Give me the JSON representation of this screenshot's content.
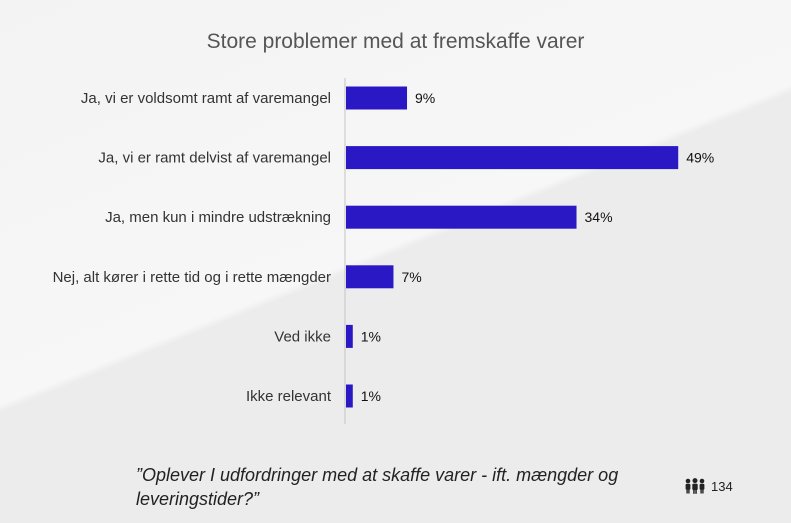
{
  "chart_data": {
    "type": "bar",
    "orientation": "horizontal",
    "title": "Store problemer med at fremskaffe varer",
    "categories": [
      "Ja, vi er voldsomt ramt af varemangel",
      "Ja, vi er ramt delvist af varemangel",
      "Ja, men kun i mindre udstrækning",
      "Nej, alt kører i rette tid og i rette mængder",
      "Ved ikke",
      "Ikke relevant"
    ],
    "values": [
      9,
      49,
      34,
      7,
      1,
      1
    ],
    "value_labels": [
      "9%",
      "49%",
      "34%",
      "7%",
      "1%",
      "1%"
    ],
    "xlim": [
      0,
      50
    ],
    "bar_color": "#2a18c4",
    "grid": false,
    "legend": "none"
  },
  "footer": {
    "question": "”Oplever I udfordringer med at skaffe varer - ift. mængder og leveringstider?”",
    "respondents": "134",
    "respondents_icon": "people-icon"
  }
}
